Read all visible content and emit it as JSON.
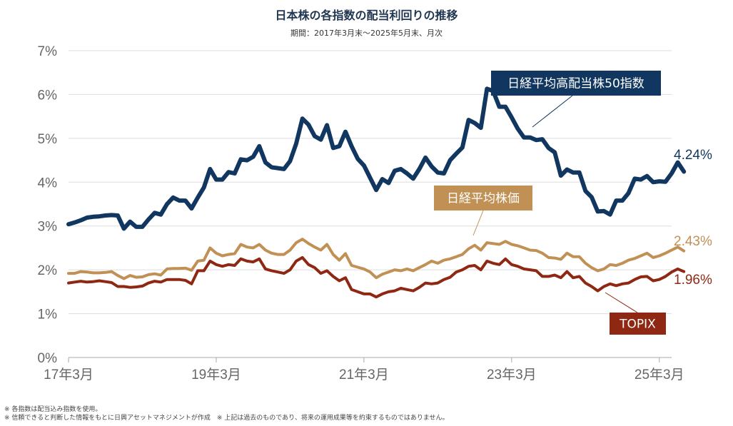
{
  "chart_data": {
    "type": "line",
    "title": "日本株の各指数の配当利回りの推移",
    "subtitle": "期間：2017年3月末～2025年5月末、月次",
    "ylim": [
      0,
      7
    ],
    "yticks": [
      {
        "v": 0,
        "label": "0%"
      },
      {
        "v": 1,
        "label": "1%"
      },
      {
        "v": 2,
        "label": "2%"
      },
      {
        "v": 3,
        "label": "3%"
      },
      {
        "v": 4,
        "label": "4%"
      },
      {
        "v": 5,
        "label": "5%"
      },
      {
        "v": 6,
        "label": "6%"
      },
      {
        "v": 7,
        "label": "7%"
      }
    ],
    "xlim": [
      "2017-03",
      "2025-05"
    ],
    "xticks": [
      {
        "date": "2017-03",
        "label": "17年3月"
      },
      {
        "date": "2019-03",
        "label": "19年3月"
      },
      {
        "date": "2021-03",
        "label": "21年3月"
      },
      {
        "date": "2023-03",
        "label": "23年3月"
      },
      {
        "date": "2025-03",
        "label": "25年3月"
      }
    ],
    "grid": true,
    "series": [
      {
        "name": "日経平均高配当株50指数",
        "color": "#11365f",
        "end_label": "4.24%",
        "values": [
          3.04,
          3.08,
          3.13,
          3.19,
          3.21,
          3.22,
          3.24,
          3.25,
          3.24,
          2.94,
          3.1,
          2.98,
          2.98,
          3.15,
          3.3,
          3.26,
          3.5,
          3.65,
          3.58,
          3.58,
          3.4,
          3.65,
          3.88,
          4.3,
          4.06,
          4.06,
          4.23,
          4.2,
          4.52,
          4.5,
          4.58,
          4.82,
          4.45,
          4.34,
          4.32,
          4.3,
          4.48,
          4.88,
          5.45,
          5.31,
          5.05,
          4.97,
          5.3,
          4.78,
          4.82,
          5.15,
          4.82,
          4.53,
          4.38,
          4.1,
          3.82,
          4.07,
          3.98,
          4.26,
          4.3,
          4.2,
          4.08,
          4.3,
          4.56,
          4.36,
          4.22,
          4.2,
          4.5,
          4.65,
          4.79,
          5.42,
          5.35,
          5.24,
          6.13,
          6.08,
          5.72,
          5.72,
          5.48,
          5.22,
          5.02,
          5.02,
          4.96,
          4.98,
          4.78,
          4.68,
          4.15,
          4.29,
          4.22,
          4.22,
          3.8,
          3.66,
          3.33,
          3.34,
          3.26,
          3.58,
          3.58,
          3.75,
          4.08,
          4.06,
          4.14,
          4.0,
          4.02,
          4.01,
          4.2,
          4.45,
          4.24
        ]
      },
      {
        "name": "日経平均株価",
        "color": "#c09054",
        "end_label": "2.43%",
        "values": [
          1.92,
          1.92,
          1.96,
          1.95,
          1.93,
          1.93,
          1.94,
          1.96,
          1.87,
          1.8,
          1.87,
          1.83,
          1.84,
          1.89,
          1.91,
          1.88,
          2.02,
          2.03,
          2.03,
          2.04,
          1.99,
          2.2,
          2.22,
          2.5,
          2.38,
          2.32,
          2.35,
          2.37,
          2.58,
          2.52,
          2.5,
          2.58,
          2.45,
          2.38,
          2.35,
          2.35,
          2.45,
          2.62,
          2.7,
          2.6,
          2.52,
          2.45,
          2.58,
          2.35,
          2.22,
          2.37,
          2.1,
          2.06,
          2.02,
          1.95,
          1.82,
          1.9,
          1.95,
          2.0,
          1.98,
          2.02,
          1.98,
          2.05,
          2.12,
          2.2,
          2.15,
          2.22,
          2.25,
          2.3,
          2.35,
          2.48,
          2.56,
          2.45,
          2.62,
          2.6,
          2.58,
          2.65,
          2.58,
          2.55,
          2.5,
          2.45,
          2.44,
          2.38,
          2.28,
          2.27,
          2.24,
          2.38,
          2.3,
          2.3,
          2.15,
          2.05,
          1.98,
          2.02,
          2.12,
          2.1,
          2.15,
          2.22,
          2.26,
          2.32,
          2.38,
          2.28,
          2.32,
          2.38,
          2.45,
          2.52,
          2.43
        ]
      },
      {
        "name": "TOPIX",
        "color": "#8f2812",
        "end_label": "1.96%",
        "values": [
          1.7,
          1.72,
          1.74,
          1.72,
          1.73,
          1.75,
          1.73,
          1.71,
          1.62,
          1.62,
          1.6,
          1.61,
          1.63,
          1.7,
          1.74,
          1.72,
          1.78,
          1.78,
          1.78,
          1.76,
          1.68,
          1.98,
          1.98,
          2.2,
          2.12,
          2.08,
          2.12,
          2.1,
          2.25,
          2.2,
          2.18,
          2.25,
          2.02,
          1.98,
          1.95,
          1.92,
          2.0,
          2.2,
          2.28,
          2.12,
          2.05,
          1.92,
          1.98,
          1.85,
          1.75,
          1.82,
          1.55,
          1.5,
          1.45,
          1.45,
          1.38,
          1.45,
          1.5,
          1.52,
          1.58,
          1.55,
          1.52,
          1.6,
          1.7,
          1.68,
          1.7,
          1.78,
          1.83,
          1.95,
          2.0,
          2.08,
          2.1,
          2.0,
          2.2,
          2.15,
          2.12,
          2.25,
          2.12,
          2.08,
          2.02,
          2.0,
          1.98,
          1.85,
          1.85,
          1.88,
          1.82,
          1.96,
          1.82,
          1.85,
          1.7,
          1.62,
          1.52,
          1.62,
          1.68,
          1.64,
          1.68,
          1.7,
          1.78,
          1.84,
          1.85,
          1.75,
          1.78,
          1.85,
          1.95,
          2.02,
          1.96
        ]
      }
    ]
  },
  "notes": {
    "line1": "※ 各指数は配当込み指数を使用。",
    "line2": "※ 信頼できると判断した情報をもとに日興アセットマネジメントが作成　※ 上記は過去のものであり、将来の運用成果等を約束するものではありません。"
  }
}
